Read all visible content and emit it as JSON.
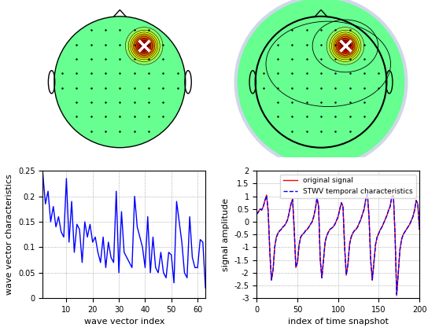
{
  "chart_data": [
    {
      "type": "topomap",
      "peak": [
        0.37,
        0.55
      ],
      "tick_labels": false
    },
    {
      "type": "topomap",
      "peak": [
        0.37,
        0.55
      ],
      "tick_labels": false
    },
    {
      "type": "line",
      "xlabel": "wave vector index",
      "ylabel": "wave vector characteristics",
      "x": [
        1,
        2,
        3,
        4,
        5,
        6,
        7,
        8,
        9,
        10,
        11,
        12,
        13,
        14,
        15,
        16,
        17,
        18,
        19,
        20,
        21,
        22,
        23,
        24,
        25,
        26,
        27,
        28,
        29,
        30,
        31,
        32,
        33,
        34,
        35,
        36,
        37,
        38,
        39,
        40,
        41,
        42,
        43,
        44,
        45,
        46,
        47,
        48,
        49,
        50,
        51,
        52,
        53,
        54,
        55,
        56,
        57,
        58,
        59,
        60,
        61,
        62,
        63
      ],
      "values": [
        0.245,
        0.185,
        0.21,
        0.15,
        0.18,
        0.14,
        0.16,
        0.13,
        0.12,
        0.235,
        0.11,
        0.19,
        0.09,
        0.145,
        0.135,
        0.07,
        0.15,
        0.12,
        0.145,
        0.11,
        0.12,
        0.09,
        0.07,
        0.12,
        0.06,
        0.11,
        0.08,
        0.07,
        0.21,
        0.05,
        0.17,
        0.09,
        0.08,
        0.07,
        0.06,
        0.2,
        0.14,
        0.12,
        0.1,
        0.06,
        0.16,
        0.05,
        0.12,
        0.06,
        0.05,
        0.09,
        0.05,
        0.04,
        0.09,
        0.085,
        0.03,
        0.19,
        0.15,
        0.11,
        0.05,
        0.04,
        0.16,
        0.08,
        0.06,
        0.06,
        0.115,
        0.11,
        0.02
      ],
      "color": "#0000ff",
      "line_style": "solid",
      "xlim": [
        1,
        63
      ],
      "xticks": [
        10,
        20,
        30,
        40,
        50,
        60
      ],
      "ylim": [
        0,
        0.25
      ],
      "yticks": [
        0,
        0.05,
        0.1,
        0.15,
        0.2,
        0.25
      ],
      "grid": true
    },
    {
      "type": "line",
      "xlabel": "index of time snapshot",
      "ylabel": "signal amplitude",
      "x": [
        0,
        2,
        4,
        6,
        8,
        10,
        12,
        14,
        16,
        18,
        20,
        22,
        24,
        26,
        28,
        30,
        32,
        34,
        36,
        38,
        40,
        42,
        44,
        46,
        48,
        50,
        52,
        54,
        56,
        58,
        60,
        62,
        64,
        66,
        68,
        70,
        72,
        74,
        76,
        78,
        80,
        82,
        84,
        86,
        88,
        90,
        92,
        94,
        96,
        98,
        100,
        102,
        104,
        106,
        108,
        110,
        112,
        114,
        116,
        118,
        120,
        122,
        124,
        126,
        128,
        130,
        132,
        134,
        136,
        138,
        140,
        142,
        144,
        146,
        148,
        150,
        152,
        154,
        156,
        158,
        160,
        162,
        164,
        166,
        168,
        170,
        172,
        174,
        176,
        178,
        180,
        182,
        184,
        186,
        188,
        190,
        192,
        194,
        196,
        198,
        200
      ],
      "series": [
        {
          "name": "original signal",
          "color": "#ff0000",
          "line_style": "solid",
          "values": [
            0.3,
            0.4,
            0.5,
            0.45,
            0.6,
            0.85,
            1.05,
            0.4,
            -1.2,
            -2.3,
            -1.9,
            -1.0,
            -0.6,
            -0.45,
            -0.35,
            -0.3,
            -0.2,
            -0.15,
            -0.05,
            0.1,
            0.4,
            0.7,
            0.9,
            -0.3,
            -1.8,
            -1.6,
            -0.9,
            -0.6,
            -0.5,
            -0.45,
            -0.35,
            -0.3,
            -0.2,
            -0.1,
            0.0,
            0.2,
            0.5,
            0.95,
            0.6,
            -1.5,
            -2.2,
            -1.5,
            -0.8,
            -0.55,
            -0.4,
            -0.3,
            -0.25,
            -0.2,
            -0.1,
            0.05,
            0.2,
            0.5,
            0.75,
            0.6,
            -1.0,
            -2.1,
            -1.7,
            -0.9,
            -0.6,
            -0.45,
            -0.35,
            -0.3,
            -0.2,
            -0.05,
            0.1,
            0.3,
            0.5,
            0.9,
            1.1,
            0.2,
            -1.5,
            -2.3,
            -1.6,
            -0.9,
            -0.6,
            -0.45,
            -0.3,
            -0.2,
            -0.05,
            0.1,
            0.25,
            0.45,
            0.6,
            1.0,
            1.05,
            -0.5,
            -2.9,
            -2.0,
            -1.1,
            -0.7,
            -0.5,
            -0.4,
            -0.3,
            -0.2,
            -0.1,
            0.05,
            0.2,
            0.45,
            0.85,
            0.7,
            -0.3
          ]
        },
        {
          "name": "STWV temporal characteristics",
          "color": "#0000ff",
          "line_style": "dashed",
          "values": [
            0.3,
            0.38,
            0.5,
            0.47,
            0.6,
            0.83,
            1.03,
            0.42,
            -1.15,
            -2.28,
            -1.88,
            -1.0,
            -0.62,
            -0.45,
            -0.36,
            -0.3,
            -0.21,
            -0.15,
            -0.06,
            0.1,
            0.38,
            0.7,
            0.88,
            -0.28,
            -1.78,
            -1.6,
            -0.92,
            -0.6,
            -0.5,
            -0.44,
            -0.35,
            -0.3,
            -0.21,
            -0.1,
            0.0,
            0.21,
            0.5,
            0.93,
            0.6,
            -1.48,
            -2.2,
            -1.52,
            -0.8,
            -0.55,
            -0.41,
            -0.3,
            -0.25,
            -0.19,
            -0.1,
            0.05,
            0.2,
            0.48,
            0.75,
            0.6,
            -1.0,
            -2.08,
            -1.7,
            -0.9,
            -0.61,
            -0.45,
            -0.35,
            -0.3,
            -0.2,
            -0.05,
            0.1,
            0.3,
            0.5,
            0.88,
            1.08,
            0.2,
            -1.48,
            -2.28,
            -1.6,
            -0.9,
            -0.6,
            -0.45,
            -0.31,
            -0.2,
            -0.05,
            0.1,
            0.25,
            0.45,
            0.6,
            0.98,
            1.03,
            -0.5,
            -2.85,
            -2.0,
            -1.1,
            -0.7,
            -0.5,
            -0.4,
            -0.3,
            -0.2,
            -0.1,
            0.05,
            0.2,
            0.45,
            0.83,
            0.7,
            -0.3
          ]
        }
      ],
      "xlim": [
        0,
        200
      ],
      "xticks": [
        0,
        50,
        100,
        150,
        200
      ],
      "ylim": [
        -3,
        2
      ],
      "yticks": [
        -3,
        -2.5,
        -2,
        -1.5,
        -1,
        -0.5,
        0,
        0.5,
        1,
        1.5,
        2
      ],
      "grid": true,
      "legend": "upper right"
    }
  ]
}
